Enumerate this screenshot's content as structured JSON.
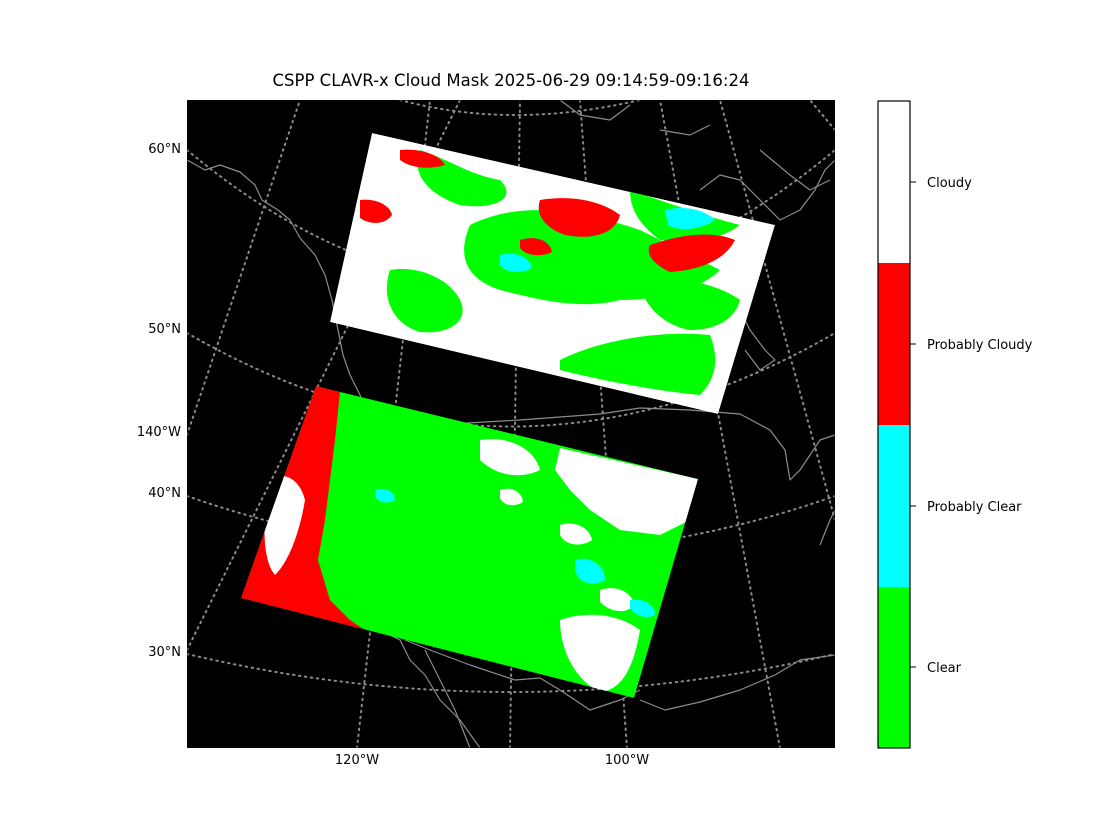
{
  "figure": {
    "title": "CSPP CLAVR-x Cloud Mask 2025-06-29 09:14:59-09:16:24"
  },
  "map": {
    "background_color": "#000000",
    "coastline_color": "#808080",
    "graticule_color": "#808080",
    "lat_labels": [
      "60°N",
      "50°N",
      "40°N",
      "30°N"
    ],
    "lon_labels_left": [
      "140°W"
    ],
    "lon_labels_bottom": [
      "120°W",
      "100°W"
    ]
  },
  "colorbar": {
    "categories": [
      {
        "label": "Cloudy",
        "color": "#ffffff"
      },
      {
        "label": "Probably Cloudy",
        "color": "#ff0000"
      },
      {
        "label": "Probably Clear",
        "color": "#00ffff"
      },
      {
        "label": "Clear",
        "color": "#00ff00"
      }
    ]
  }
}
